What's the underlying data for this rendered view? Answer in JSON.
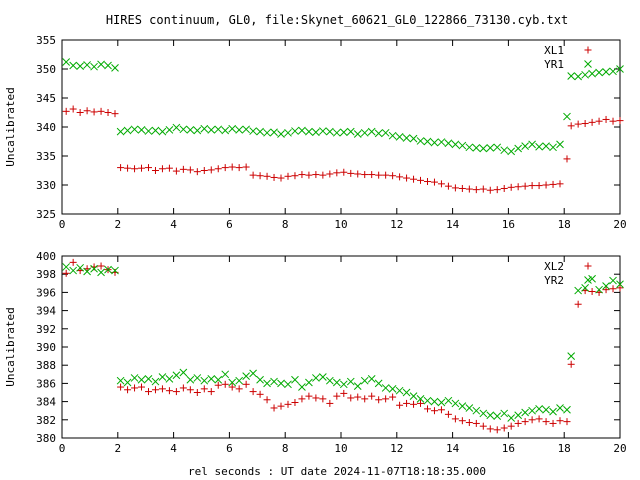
{
  "title": "HIRES continuum, GL0, file:Skynet_60621_GL0_122866_73130.cyb.txt",
  "xlabel": "rel seconds : UT date 2024-11-07T18:18:35.000",
  "colors": {
    "series1": "#cc0000",
    "series2": "#00aa00",
    "axis": "#000000"
  },
  "chart_data": [
    {
      "type": "scatter",
      "ylabel": "Uncalibrated",
      "xlim": [
        0,
        20
      ],
      "ylim": [
        325,
        355
      ],
      "xticks": [
        0,
        2,
        4,
        6,
        8,
        10,
        12,
        14,
        16,
        18,
        20
      ],
      "yticks": [
        325,
        330,
        335,
        340,
        345,
        350,
        355
      ],
      "grid": false,
      "legend_position": "top-right",
      "series": [
        {
          "name": "XL1",
          "marker": "plus",
          "x": [
            0.15,
            0.4,
            0.65,
            0.9,
            1.15,
            1.4,
            1.65,
            1.9,
            2.1,
            2.35,
            2.6,
            2.85,
            3.1,
            3.35,
            3.6,
            3.85,
            4.1,
            4.35,
            4.6,
            4.85,
            5.1,
            5.35,
            5.6,
            5.85,
            6.1,
            6.35,
            6.6,
            6.85,
            7.1,
            7.35,
            7.6,
            7.85,
            8.1,
            8.35,
            8.6,
            8.85,
            9.1,
            9.35,
            9.6,
            9.85,
            10.1,
            10.35,
            10.6,
            10.85,
            11.1,
            11.35,
            11.6,
            11.85,
            12.1,
            12.35,
            12.6,
            12.85,
            13.1,
            13.35,
            13.6,
            13.85,
            14.1,
            14.35,
            14.6,
            14.85,
            15.1,
            15.35,
            15.6,
            15.85,
            16.1,
            16.35,
            16.6,
            16.85,
            17.1,
            17.35,
            17.6,
            17.85,
            18.1,
            18.25,
            18.5,
            18.75,
            19.0,
            19.25,
            19.5,
            19.75,
            20.0
          ],
          "y": [
            342.7,
            343.1,
            342.5,
            342.8,
            342.6,
            342.7,
            342.5,
            342.3,
            333.0,
            332.9,
            332.8,
            332.9,
            333.0,
            332.5,
            332.8,
            332.9,
            332.4,
            332.7,
            332.6,
            332.3,
            332.5,
            332.6,
            332.8,
            333.0,
            333.1,
            333.0,
            333.1,
            331.7,
            331.6,
            331.5,
            331.3,
            331.2,
            331.5,
            331.6,
            331.8,
            331.7,
            331.8,
            331.7,
            331.9,
            332.1,
            332.2,
            332.0,
            331.9,
            331.8,
            331.8,
            331.7,
            331.7,
            331.6,
            331.4,
            331.2,
            331.0,
            330.8,
            330.6,
            330.5,
            330.2,
            329.8,
            329.5,
            329.4,
            329.3,
            329.2,
            329.3,
            329.1,
            329.2,
            329.4,
            329.6,
            329.7,
            329.8,
            329.9,
            329.9,
            330.0,
            330.1,
            330.2,
            334.5,
            340.2,
            340.5,
            340.6,
            340.8,
            341.0,
            341.3,
            341.0,
            341.1
          ]
        },
        {
          "name": "YR1",
          "marker": "cross",
          "x": [
            0.15,
            0.4,
            0.65,
            0.9,
            1.15,
            1.4,
            1.65,
            1.9,
            2.1,
            2.35,
            2.6,
            2.85,
            3.1,
            3.35,
            3.6,
            3.85,
            4.1,
            4.35,
            4.6,
            4.85,
            5.1,
            5.35,
            5.6,
            5.85,
            6.1,
            6.35,
            6.6,
            6.85,
            7.1,
            7.35,
            7.6,
            7.85,
            8.1,
            8.35,
            8.6,
            8.85,
            9.1,
            9.35,
            9.6,
            9.85,
            10.1,
            10.35,
            10.6,
            10.85,
            11.1,
            11.35,
            11.6,
            11.85,
            12.1,
            12.35,
            12.6,
            12.85,
            13.1,
            13.35,
            13.6,
            13.85,
            14.1,
            14.35,
            14.6,
            14.85,
            15.1,
            15.35,
            15.6,
            15.85,
            16.1,
            16.35,
            16.6,
            16.85,
            17.1,
            17.35,
            17.6,
            17.85,
            18.1,
            18.25,
            18.5,
            18.75,
            19.0,
            19.25,
            19.5,
            19.75,
            20.0
          ],
          "y": [
            351.2,
            350.6,
            350.5,
            350.7,
            350.4,
            350.8,
            350.6,
            350.2,
            339.2,
            339.4,
            339.6,
            339.5,
            339.3,
            339.4,
            339.2,
            339.5,
            339.9,
            339.6,
            339.5,
            339.4,
            339.7,
            339.5,
            339.6,
            339.4,
            339.7,
            339.5,
            339.6,
            339.3,
            339.2,
            339.0,
            339.1,
            338.8,
            339.0,
            339.3,
            339.4,
            339.2,
            339.1,
            339.3,
            339.2,
            339.0,
            339.1,
            339.2,
            338.8,
            339.0,
            339.2,
            338.9,
            339.0,
            338.5,
            338.3,
            338.1,
            338.0,
            337.6,
            337.5,
            337.3,
            337.4,
            337.2,
            337.0,
            336.8,
            336.5,
            336.4,
            336.3,
            336.4,
            336.5,
            336.0,
            335.8,
            336.3,
            336.7,
            337.0,
            336.6,
            336.7,
            336.5,
            337.0,
            341.8,
            348.8,
            348.7,
            349.0,
            349.2,
            349.4,
            349.5,
            349.6,
            350.0
          ]
        }
      ]
    },
    {
      "type": "scatter",
      "ylabel": "Uncalibrated",
      "xlim": [
        0,
        20
      ],
      "ylim": [
        380,
        400
      ],
      "xticks": [
        0,
        2,
        4,
        6,
        8,
        10,
        12,
        14,
        16,
        18,
        20
      ],
      "yticks": [
        380,
        382,
        384,
        386,
        388,
        390,
        392,
        394,
        396,
        398,
        400
      ],
      "grid": false,
      "legend_position": "top-right",
      "series": [
        {
          "name": "XL2",
          "marker": "plus",
          "x": [
            0.15,
            0.4,
            0.65,
            0.9,
            1.15,
            1.4,
            1.65,
            1.9,
            2.1,
            2.35,
            2.6,
            2.85,
            3.1,
            3.35,
            3.6,
            3.85,
            4.1,
            4.35,
            4.6,
            4.85,
            5.1,
            5.35,
            5.6,
            5.85,
            6.1,
            6.35,
            6.6,
            6.85,
            7.1,
            7.35,
            7.6,
            7.85,
            8.1,
            8.35,
            8.6,
            8.85,
            9.1,
            9.35,
            9.6,
            9.85,
            10.1,
            10.35,
            10.6,
            10.85,
            11.1,
            11.35,
            11.6,
            11.85,
            12.1,
            12.35,
            12.6,
            12.85,
            13.1,
            13.35,
            13.6,
            13.85,
            14.1,
            14.35,
            14.6,
            14.85,
            15.1,
            15.35,
            15.6,
            15.85,
            16.1,
            16.35,
            16.6,
            16.85,
            17.1,
            17.35,
            17.6,
            17.85,
            18.1,
            18.25,
            18.5,
            18.75,
            19.0,
            19.25,
            19.5,
            19.75,
            20.0
          ],
          "y": [
            398.1,
            399.3,
            398.4,
            398.6,
            398.8,
            398.9,
            398.5,
            398.2,
            385.6,
            385.3,
            385.5,
            385.6,
            385.1,
            385.3,
            385.4,
            385.2,
            385.1,
            385.5,
            385.3,
            385.0,
            385.4,
            385.1,
            385.8,
            385.9,
            385.6,
            385.4,
            385.9,
            385.1,
            384.8,
            384.2,
            383.3,
            383.5,
            383.7,
            383.9,
            384.3,
            384.6,
            384.4,
            384.3,
            383.8,
            384.6,
            384.9,
            384.4,
            384.5,
            384.3,
            384.6,
            384.2,
            384.3,
            384.5,
            383.6,
            383.8,
            383.7,
            383.8,
            383.2,
            383.0,
            383.1,
            382.6,
            382.1,
            381.9,
            381.7,
            381.6,
            381.3,
            381.0,
            380.9,
            381.1,
            381.3,
            381.6,
            381.8,
            382.0,
            382.1,
            381.8,
            381.6,
            381.9,
            381.8,
            388.1,
            394.7,
            396.2,
            396.1,
            396.0,
            396.3,
            396.4,
            396.5
          ]
        },
        {
          "name": "YR2",
          "marker": "cross",
          "x": [
            0.15,
            0.4,
            0.65,
            0.9,
            1.15,
            1.4,
            1.65,
            1.9,
            2.1,
            2.35,
            2.6,
            2.85,
            3.1,
            3.35,
            3.6,
            3.85,
            4.1,
            4.35,
            4.6,
            4.85,
            5.1,
            5.35,
            5.6,
            5.85,
            6.1,
            6.35,
            6.6,
            6.85,
            7.1,
            7.35,
            7.6,
            7.85,
            8.1,
            8.35,
            8.6,
            8.85,
            9.1,
            9.35,
            9.6,
            9.85,
            10.1,
            10.35,
            10.6,
            10.85,
            11.1,
            11.35,
            11.6,
            11.85,
            12.1,
            12.35,
            12.6,
            12.85,
            13.1,
            13.35,
            13.6,
            13.85,
            14.1,
            14.35,
            14.6,
            14.85,
            15.1,
            15.35,
            15.6,
            15.85,
            16.1,
            16.35,
            16.6,
            16.85,
            17.1,
            17.35,
            17.6,
            17.85,
            18.1,
            18.25,
            18.5,
            18.75,
            19.0,
            19.25,
            19.5,
            19.75,
            20.0
          ],
          "y": [
            398.8,
            398.4,
            398.7,
            398.3,
            398.6,
            398.2,
            398.5,
            398.4,
            386.3,
            386.1,
            386.6,
            386.4,
            386.5,
            386.2,
            386.7,
            386.5,
            386.9,
            387.2,
            386.4,
            386.6,
            386.3,
            386.5,
            386.4,
            387.0,
            386.1,
            386.3,
            386.8,
            387.1,
            386.4,
            386.0,
            386.2,
            386.0,
            385.9,
            386.4,
            385.6,
            386.1,
            386.6,
            386.7,
            386.3,
            386.1,
            385.9,
            386.2,
            385.7,
            386.3,
            386.5,
            386.0,
            385.5,
            385.4,
            385.2,
            385.0,
            384.6,
            384.3,
            384.1,
            384.0,
            383.9,
            384.1,
            383.8,
            383.5,
            383.3,
            383.0,
            382.7,
            382.5,
            382.4,
            382.7,
            382.2,
            382.5,
            382.8,
            383.0,
            383.2,
            383.1,
            382.9,
            383.3,
            383.1,
            389.0,
            396.2,
            396.5,
            397.5,
            396.3,
            396.7,
            397.3,
            396.9
          ]
        }
      ]
    }
  ]
}
